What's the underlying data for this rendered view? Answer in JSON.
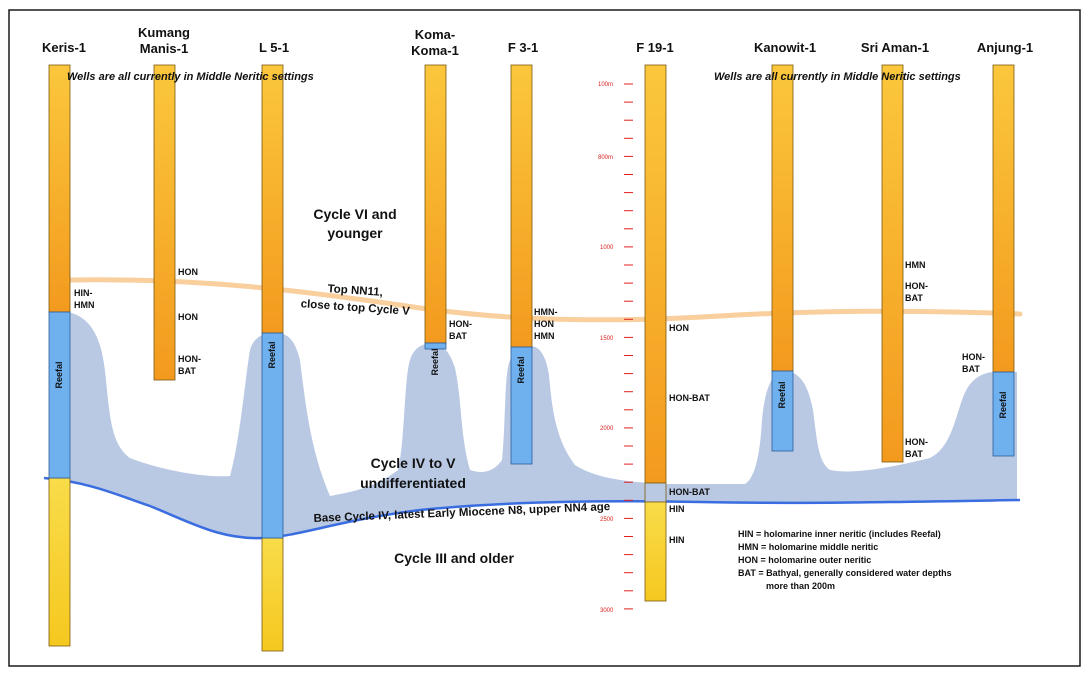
{
  "colors": {
    "border": "#1a1a1a",
    "well_upper": "#f6a520",
    "well_lower": "#f8d640",
    "reefal": "#6fb0ee",
    "shaded_body": "#b9c9e4",
    "top_nn11_line": "#f9cf9d",
    "base_cycle_line": "#3a6de0",
    "depth_ticks": "#e02020"
  },
  "notes": {
    "left": "Wells are all currently in Middle Neritic settings",
    "right": "Wells are all currently in Middle Neritic settings"
  },
  "wells": [
    {
      "name_lines": [
        "Keris-1"
      ]
    },
    {
      "name_lines": [
        "Kumang",
        "Manis-1"
      ]
    },
    {
      "name_lines": [
        "L 5-1"
      ]
    },
    {
      "name_lines": [
        "Koma-",
        "Koma-1"
      ]
    },
    {
      "name_lines": [
        "F 3-1"
      ]
    },
    {
      "name_lines": [
        "F 19-1"
      ]
    },
    {
      "name_lines": [
        "Kanowit-1"
      ]
    },
    {
      "name_lines": [
        "Sri Aman-1"
      ]
    },
    {
      "name_lines": [
        "Anjung-1"
      ]
    }
  ],
  "reefal_label": "Reefal",
  "annotations": [
    {
      "lines": [
        "HIN-",
        "HMN"
      ]
    },
    {
      "lines": [
        "HON"
      ]
    },
    {
      "lines": [
        "HON"
      ]
    },
    {
      "lines": [
        "HON-",
        "BAT"
      ]
    },
    {
      "lines": [
        "HON-",
        "BAT"
      ]
    },
    {
      "lines": [
        "HMN-",
        "HON",
        "HMN"
      ]
    },
    {
      "lines": [
        "HON"
      ]
    },
    {
      "lines": [
        "HON-BAT"
      ]
    },
    {
      "lines": [
        "HON-BAT"
      ]
    },
    {
      "lines": [
        "HIN"
      ]
    },
    {
      "lines": [
        "HIN"
      ]
    },
    {
      "lines": [
        "HMN"
      ]
    },
    {
      "lines": [
        "HON-",
        "BAT"
      ]
    },
    {
      "lines": [
        "HON-",
        "BAT"
      ]
    },
    {
      "lines": [
        "HON-",
        "BAT"
      ]
    }
  ],
  "units": {
    "cycle_vi": [
      "Cycle VI and",
      "younger"
    ],
    "top_nn11": [
      "Top NN11,",
      "close to top Cycle V"
    ],
    "cycle_iv_v": [
      "Cycle IV to V",
      "undifferentiated"
    ],
    "base_cycle": "Base Cycle IV, latest Early Miocene N8, upper NN4 age",
    "cycle_iii": "Cycle III and older"
  },
  "depth_scale": [
    "100m",
    "800m",
    "1000",
    "1500",
    "2000",
    "2500",
    "3000"
  ],
  "legend": [
    "HIN = holomarine inner neritic (includes Reefal)",
    "HMN = holomarine middle neritic",
    "HON = holomarine outer neritic",
    "BAT = Bathyal, generally considered water depths",
    "more than 200m"
  ]
}
